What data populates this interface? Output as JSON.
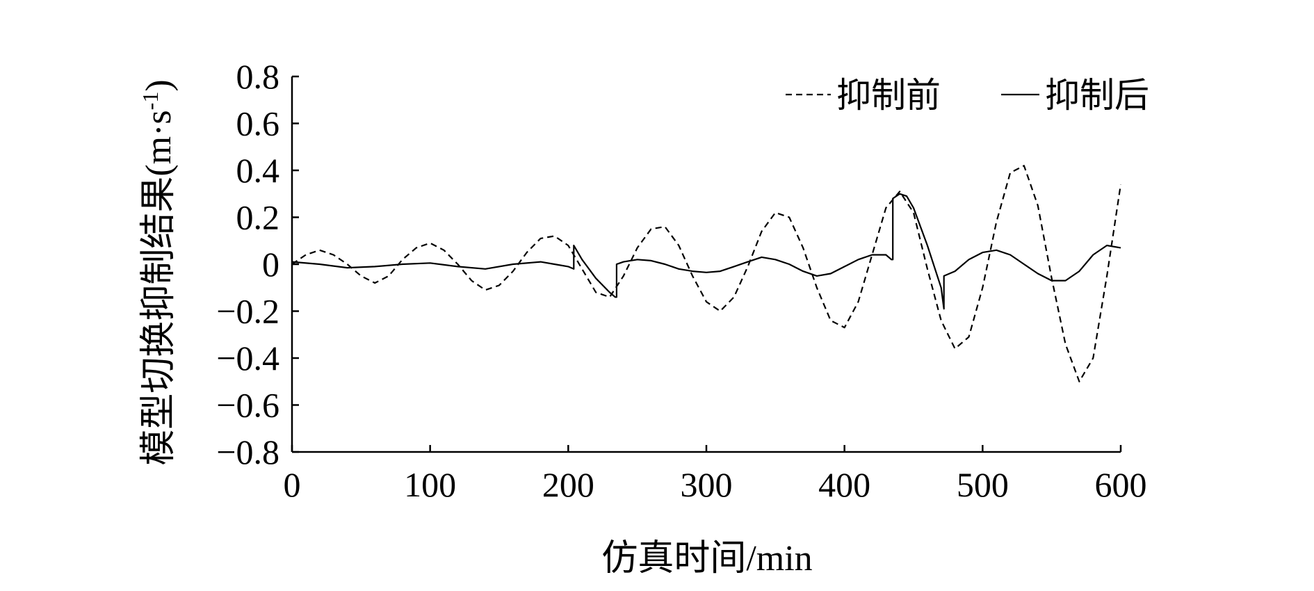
{
  "chart_data": {
    "type": "line",
    "title": "",
    "xlabel": "仿真时间/min",
    "ylabel": "模型切换抑制结果(m·s",
    "ylabel_superscript": "-1",
    "ylabel_close": ")",
    "xlim": [
      0,
      600
    ],
    "ylim": [
      -0.8,
      0.8
    ],
    "x_ticks": [
      0,
      100,
      200,
      300,
      400,
      500,
      600
    ],
    "x_tick_labels": [
      "0",
      "100",
      "200",
      "300",
      "400",
      "500",
      "600"
    ],
    "y_ticks": [
      -0.8,
      -0.6,
      -0.4,
      -0.2,
      0,
      0.2,
      0.4,
      0.6,
      0.8
    ],
    "y_tick_labels": [
      "−0.8",
      "−0.6",
      "−0.4",
      "−0.2",
      "0",
      "0.2",
      "0.4",
      "0.6",
      "0.8"
    ],
    "grid": false,
    "legend_position": "top-right",
    "series": [
      {
        "name": "抑制前",
        "style": "dashed",
        "color": "#000000",
        "x": [
          0,
          10,
          20,
          30,
          40,
          50,
          60,
          70,
          80,
          90,
          100,
          110,
          120,
          130,
          140,
          150,
          160,
          170,
          180,
          190,
          200,
          210,
          220,
          230,
          240,
          250,
          260,
          270,
          280,
          290,
          300,
          310,
          320,
          330,
          340,
          350,
          360,
          370,
          380,
          390,
          400,
          410,
          420,
          430,
          440,
          450,
          460,
          470,
          480,
          490,
          500,
          510,
          520,
          530,
          540,
          550,
          560,
          570,
          580,
          590,
          600
        ],
        "y": [
          0.0,
          0.04,
          0.06,
          0.04,
          0.0,
          -0.05,
          -0.08,
          -0.05,
          0.02,
          0.07,
          0.09,
          0.06,
          0.0,
          -0.07,
          -0.11,
          -0.09,
          -0.03,
          0.05,
          0.11,
          0.12,
          0.08,
          -0.02,
          -0.12,
          -0.14,
          -0.05,
          0.07,
          0.15,
          0.16,
          0.08,
          -0.05,
          -0.16,
          -0.2,
          -0.14,
          -0.01,
          0.14,
          0.22,
          0.2,
          0.07,
          -0.1,
          -0.24,
          -0.27,
          -0.16,
          0.04,
          0.24,
          0.31,
          0.22,
          -0.02,
          -0.24,
          -0.36,
          -0.31,
          -0.1,
          0.18,
          0.39,
          0.42,
          0.25,
          -0.06,
          -0.34,
          -0.5,
          -0.4,
          -0.05,
          0.34
        ]
      },
      {
        "name": "抑制后",
        "style": "solid",
        "color": "#000000",
        "x": [
          0,
          20,
          40,
          60,
          80,
          100,
          120,
          140,
          160,
          180,
          190,
          200,
          204,
          204.01,
          210,
          220,
          230,
          234,
          235,
          235.01,
          240,
          250,
          260,
          270,
          280,
          290,
          300,
          310,
          320,
          330,
          340,
          350,
          360,
          370,
          380,
          390,
          400,
          410,
          420,
          430,
          434,
          435,
          435.01,
          440,
          445,
          450,
          460,
          470,
          472,
          472.01,
          480,
          490,
          500,
          510,
          520,
          530,
          540,
          550,
          560,
          570,
          580,
          590,
          600
        ],
        "y": [
          0.01,
          0.0,
          -0.015,
          -0.01,
          0.0,
          0.005,
          -0.01,
          -0.02,
          0.0,
          0.01,
          0.0,
          -0.01,
          -0.02,
          0.08,
          0.02,
          -0.06,
          -0.12,
          -0.14,
          -0.14,
          0.0,
          0.01,
          0.02,
          0.015,
          0.0,
          -0.02,
          -0.03,
          -0.035,
          -0.03,
          -0.01,
          0.01,
          0.03,
          0.02,
          0.0,
          -0.03,
          -0.05,
          -0.04,
          -0.01,
          0.02,
          0.04,
          0.04,
          0.02,
          0.02,
          0.28,
          0.3,
          0.29,
          0.24,
          0.08,
          -0.1,
          -0.19,
          -0.05,
          -0.03,
          0.02,
          0.05,
          0.06,
          0.04,
          0.0,
          -0.04,
          -0.07,
          -0.07,
          -0.03,
          0.04,
          0.08,
          0.07
        ]
      }
    ]
  }
}
